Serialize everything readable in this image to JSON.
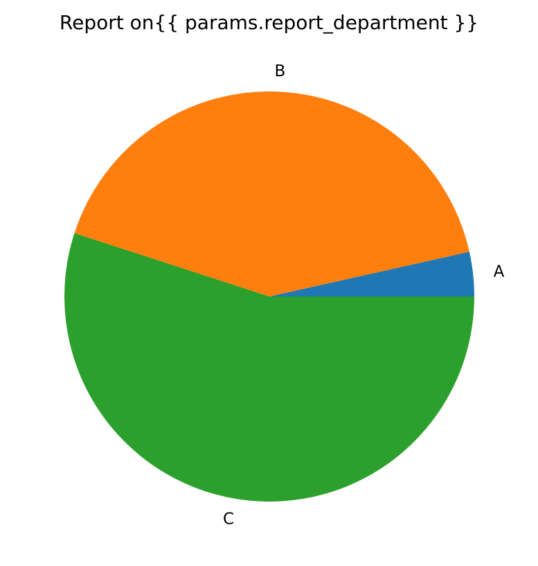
{
  "chart_data": {
    "type": "pie",
    "title": "Report on{{ params.report_department }}",
    "categories": [
      "A",
      "B",
      "C"
    ],
    "values": [
      3.5,
      41.5,
      55
    ],
    "colors": [
      "#1f77b4",
      "#ff7f0e",
      "#2ca02c"
    ],
    "start_angle_deg": 0,
    "direction": "counterclockwise",
    "legend": "none"
  }
}
